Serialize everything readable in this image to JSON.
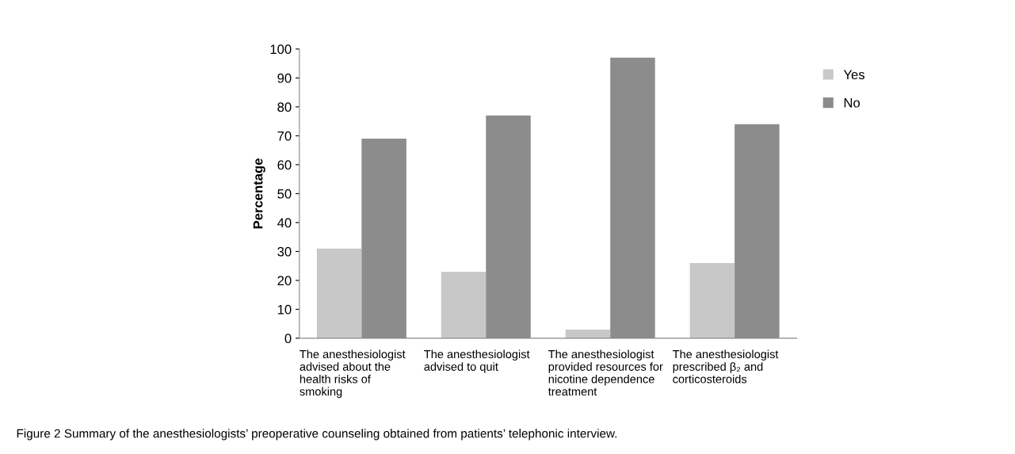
{
  "chart_data": {
    "type": "bar",
    "ylabel": "Percentage",
    "categories": [
      "The anesthesiologist\nadvised about the\nhealth risks of\nsmoking",
      "The anesthesiologist\nadvised to quit",
      "The anesthesiologist\nprovided resources for\nnicotine dependence\ntreatment",
      "The anesthesiologist\nprescribed β₂ and\ncorticosteroids"
    ],
    "series": [
      {
        "name": "Yes",
        "color": "#c8c8c8",
        "values": [
          31,
          23,
          3,
          26
        ]
      },
      {
        "name": "No",
        "color": "#8c8c8c",
        "values": [
          69,
          77,
          97,
          74
        ]
      }
    ],
    "ylim": [
      0,
      100
    ],
    "yticks": [
      0,
      10,
      20,
      30,
      40,
      50,
      60,
      70,
      80,
      90,
      100
    ],
    "grid": false,
    "legend": "top right",
    "annotations": [
      "Figure 2 Summary of the anesthesiologists’ preoperative counseling obtained from patients’ telephonic interview."
    ]
  }
}
